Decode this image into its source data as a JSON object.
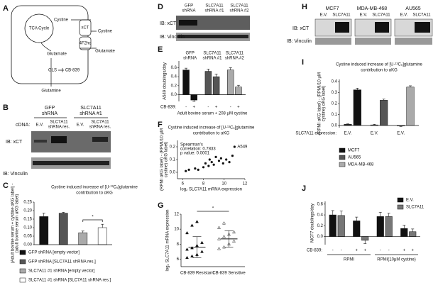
{
  "panel_labels": [
    "A",
    "B",
    "C",
    "D",
    "E",
    "F",
    "G",
    "H",
    "I",
    "J"
  ],
  "diagram": {
    "tca": "TCA Cycle",
    "cystine_in": "Cystine",
    "cystine_out": "Cystine",
    "glutamate_in": "Glutamate",
    "glutamate_out": "Glutamate",
    "xct": "xCT",
    "f2hc": "4F2hc",
    "gls": "GLS",
    "cb839": "CB-839",
    "glutamine": "Glutamine"
  },
  "blot_b": {
    "headers": [
      [
        "GFP",
        "shRNA"
      ],
      [
        "SLC7A11",
        "shRNA #1"
      ]
    ],
    "cdna": "cDNA:",
    "lanes": [
      [
        "E.V."
      ],
      [
        "SLC7A11",
        "shRNA res."
      ],
      [
        "E.V."
      ],
      [
        "SLC7A11",
        "shRNA res."
      ]
    ],
    "rows": [
      "IB: xCT",
      "IB: Vinculin"
    ]
  },
  "blot_d": {
    "headers": [
      [
        "GFP",
        "shRNA"
      ],
      [
        "SLC7A11",
        "shRNA #1"
      ],
      [
        "SLC7A11",
        "shRNA #2"
      ]
    ],
    "rows": [
      "IB: xCT",
      "IB: Vinculin"
    ]
  },
  "blot_h": {
    "headers": [
      "MCF7",
      "MDA-MB-468",
      "AU565"
    ],
    "lanes": [
      "E.V.",
      "SLC7A11",
      "E.V.",
      "SLC7A11",
      "E.V.",
      "SLC7A11"
    ],
    "rows": [
      "IB: xCT",
      "IB: Vinculin"
    ]
  },
  "chart_data": [
    {
      "type": "bar",
      "group_by": "series",
      "title": [
        "Cystine induced increase of [U-¹³C₅]glutamine",
        "contribution to αKG"
      ],
      "ylabel": [
        "(Adult bovine serum + cystine αKG label) -",
        "(adult bovine serum αKG label)"
      ],
      "series": [
        {
          "name": "GFP shRNA [empty vector]",
          "color": "#111111",
          "values": [
            0.165
          ],
          "errors": [
            0.02
          ]
        },
        {
          "name": "GFP shRNA [SLC7A11 shRNA res.]",
          "color": "#555555",
          "values": [
            0.185
          ],
          "errors": [
            0.005
          ]
        },
        {
          "name": "SLC7A11 #1 shRNA [empty vector]",
          "color": "#aaaaaa",
          "values": [
            0.07
          ],
          "errors": [
            0.01
          ]
        },
        {
          "name": "SLC7A11 #1 shRNA [SLC7A11 shRNA res.]",
          "color": "#ffffff",
          "values": [
            0.1
          ],
          "errors": [
            0.02
          ]
        }
      ],
      "ylim": [
        0,
        0.25
      ],
      "yticks": [
        {
          "value": 0,
          "label": "0.00"
        },
        {
          "value": 0.05,
          "label": "0.05"
        },
        {
          "value": 0.1,
          "label": "0.10"
        },
        {
          "value": 0.15,
          "label": "0.15"
        },
        {
          "value": 0.2,
          "label": "0.20"
        },
        {
          "value": 0.25,
          "label": "0.25"
        }
      ],
      "significance": "*"
    },
    {
      "type": "bar",
      "group_by": "series",
      "headers": [
        [
          "GFP",
          "shRNA"
        ],
        [
          "SLC7A11",
          "shRNA #1"
        ],
        [
          "SLC7A11",
          "shRNA #2"
        ]
      ],
      "ylabel": [
        "A549 doublings/day"
      ],
      "series": [
        {
          "color": "#111111",
          "values": [
            0.55,
            -0.12
          ],
          "errors": [
            0.04,
            0.03
          ]
        },
        {
          "color": "#555555",
          "values": [
            0.52,
            0.4
          ],
          "errors": [
            0.05,
            0.06
          ]
        },
        {
          "color": "#aaaaaa",
          "values": [
            0.55,
            0.17
          ],
          "errors": [
            0.05,
            0.04
          ]
        }
      ],
      "x_title": "CB-839:",
      "x_labels": [
        "-",
        "+",
        "-",
        "+",
        "-",
        "+"
      ],
      "xlabel": "Adult bovine serum + 208 μM cystine",
      "ylim": [
        -0.15,
        0.75
      ],
      "yticks": [
        {
          "value": 0,
          "label": "0.0"
        },
        {
          "value": 0.2,
          "label": "0.2"
        },
        {
          "value": 0.4,
          "label": "0.4"
        },
        {
          "value": 0.6,
          "label": "0.6"
        }
      ]
    },
    {
      "type": "scatter",
      "title": [
        "Cystine induced increase of [U-¹³C₅]glutamine",
        "contribution to αKG"
      ],
      "ylabel": [
        "(RPMI αKG label) - (RPMI/10 μM",
        "cystine) αKG label)"
      ],
      "xlabel": "log₂ SLC7A11 mRNA expression",
      "x": [
        6.3,
        6.6,
        7.2,
        7.5,
        8.0,
        8.2,
        8.5,
        8.6,
        8.8,
        9.0,
        9.2,
        9.5,
        9.7,
        9.9,
        10.2,
        10.5,
        10.8,
        11.0
      ],
      "y": [
        0.01,
        0.02,
        0.03,
        0.02,
        0.04,
        0.07,
        0.05,
        0.1,
        0.08,
        0.06,
        0.12,
        0.09,
        0.11,
        0.07,
        0.1,
        0.08,
        0.13,
        0.2
      ],
      "annotations": [
        "Spearman's",
        "correlation: 0.7833",
        "p value: 0.0001"
      ],
      "point_label": "A549",
      "xlim": [
        5.5,
        12
      ],
      "xticks": [
        6,
        8,
        10,
        12
      ],
      "ylim": [
        -0.05,
        0.25
      ],
      "yticks": [
        {
          "value": 0,
          "label": "0.0"
        },
        {
          "value": 0.1,
          "label": "0.1"
        },
        {
          "value": 0.2,
          "label": "0.2"
        }
      ]
    },
    {
      "type": "strip",
      "ylabel": [
        "log₂ SLC7A11 mRNA expression"
      ],
      "categories": [
        "CB-839 Resistant",
        "CB-839 Sensitive"
      ],
      "values": [
        [
          6.2,
          6.4,
          6.6,
          7.0,
          7.3,
          7.5,
          7.8,
          8.2,
          9.5,
          10.5,
          11.0
        ],
        [
          7.4,
          7.6,
          8.0,
          8.4,
          8.7,
          9.0,
          9.3,
          9.6,
          10.2,
          10.8
        ]
      ],
      "means": [
        7.6,
        8.7
      ],
      "errors": [
        1.4,
        1.1
      ],
      "ylim": [
        5,
        12
      ],
      "yticks": [
        6,
        8,
        10,
        12
      ],
      "significance": "*"
    },
    {
      "type": "bar",
      "group_by": "series",
      "title": [
        "Cystine induced increase of [U-¹³C₅]glutamine",
        "contribution to αKG"
      ],
      "ylabel": [
        "(RPMI αKG label) - (RPMI/10 μM",
        "cystine) αKG label)"
      ],
      "series": [
        {
          "name": "MCF7",
          "color": "#111111",
          "values": [
            0.01,
            0.325
          ],
          "errors": [
            0.005,
            0.015
          ]
        },
        {
          "name": "AU565",
          "color": "#555555",
          "values": [
            0.005,
            0.23
          ],
          "errors": [
            0.005,
            0.01
          ]
        },
        {
          "name": "MDA-MB-468",
          "color": "#aaaaaa",
          "values": [
            -0.005,
            0.35
          ],
          "errors": [
            0.004,
            0.012
          ]
        }
      ],
      "x_title": "SLC7A11 expression:",
      "x_labels": [
        "E.V.",
        "E.V.",
        "E.V."
      ],
      "ylim": [
        -0.02,
        0.42
      ],
      "yticks": [
        {
          "value": 0,
          "label": "0.0"
        },
        {
          "value": 0.1,
          "label": "0.1"
        },
        {
          "value": 0.2,
          "label": "0.2"
        },
        {
          "value": 0.3,
          "label": "0.3"
        },
        {
          "value": 0.4,
          "label": "0.4"
        }
      ]
    },
    {
      "type": "bar",
      "group_by": "category",
      "ylabel": [
        "MCF7 doublings/day"
      ],
      "categories": [
        null,
        null,
        null,
        null
      ],
      "series": [
        {
          "name": "E.V.",
          "color": "#111111",
          "values": [
            0.4,
            0.29,
            0.37,
            0.15
          ],
          "errors": [
            0.08,
            0.07,
            0.08,
            0.06
          ]
        },
        {
          "name": "SLC7A11",
          "color": "#777777",
          "values": [
            0.39,
            -0.07,
            0.37,
            0.09
          ],
          "errors": [
            0.08,
            0.06,
            0.06,
            0.05
          ]
        }
      ],
      "x_title": "CB-839:",
      "x_labels": [
        "-",
        "-",
        "+",
        "+",
        "-",
        "-",
        "+",
        "+"
      ],
      "groups": [
        "RPMI",
        "RPMI(10μM cystine)"
      ],
      "ylim": [
        -0.15,
        0.65
      ],
      "yticks": [
        {
          "value": 0,
          "label": "0.0"
        },
        {
          "value": 0.2,
          "label": "0.2"
        },
        {
          "value": 0.4,
          "label": "0.4"
        },
        {
          "value": 0.6,
          "label": "0.6"
        }
      ]
    }
  ]
}
